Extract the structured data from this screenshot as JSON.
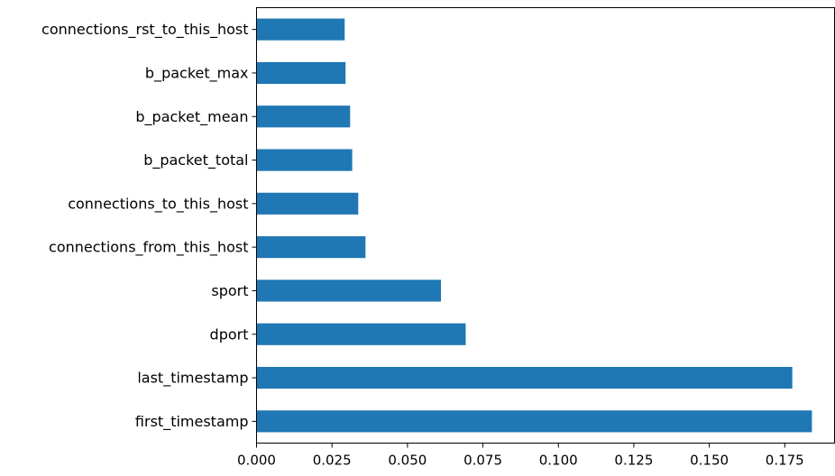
{
  "chart_data": {
    "type": "bar",
    "orientation": "horizontal",
    "title": "",
    "xlabel": "",
    "ylabel": "",
    "categories": [
      "first_timestamp",
      "last_timestamp",
      "dport",
      "sport",
      "connections_from_this_host",
      "connections_to_this_host",
      "b_packet_total",
      "b_packet_mean",
      "b_packet_max",
      "connections_rst_to_this_host"
    ],
    "values": [
      0.184,
      0.1775,
      0.0693,
      0.0611,
      0.0361,
      0.0337,
      0.0317,
      0.031,
      0.0295,
      0.0292
    ],
    "xlim": [
      0,
      0.1915
    ],
    "xticks": [
      "0.000",
      "0.025",
      "0.050",
      "0.075",
      "0.100",
      "0.125",
      "0.150",
      "0.175"
    ],
    "xtick_values": [
      0,
      0.025,
      0.05,
      0.075,
      0.1,
      0.125,
      0.15,
      0.175
    ],
    "grid": false,
    "legend": "none",
    "bar_color": "#1f77b4"
  }
}
